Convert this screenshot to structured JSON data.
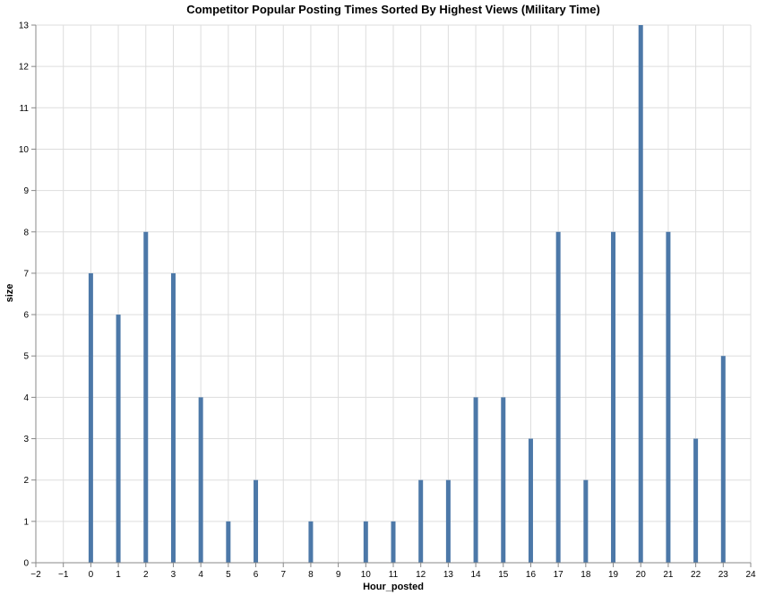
{
  "chart_data": {
    "type": "bar",
    "title": "Competitor Popular Posting Times Sorted By Highest Views (Military Time)",
    "xlabel": "Hour_posted",
    "ylabel": "size",
    "x": [
      0,
      1,
      2,
      3,
      4,
      5,
      6,
      8,
      10,
      11,
      12,
      13,
      14,
      15,
      16,
      17,
      18,
      19,
      20,
      21,
      22,
      23
    ],
    "values": [
      7,
      6,
      8,
      7,
      4,
      1,
      2,
      1,
      1,
      1,
      2,
      2,
      4,
      4,
      3,
      8,
      2,
      8,
      13,
      8,
      3,
      5
    ],
    "xlim": [
      -2,
      24
    ],
    "ylim": [
      0,
      13
    ],
    "xticks": [
      "−2",
      "−1",
      "0",
      "1",
      "2",
      "3",
      "4",
      "5",
      "6",
      "7",
      "8",
      "9",
      "10",
      "11",
      "12",
      "13",
      "14",
      "15",
      "16",
      "17",
      "18",
      "19",
      "20",
      "21",
      "22",
      "23",
      "24"
    ],
    "yticks": [
      "0",
      "1",
      "2",
      "3",
      "4",
      "5",
      "6",
      "7",
      "8",
      "9",
      "10",
      "11",
      "12",
      "13"
    ],
    "grid": true,
    "bar_color": "#4c78a8"
  }
}
